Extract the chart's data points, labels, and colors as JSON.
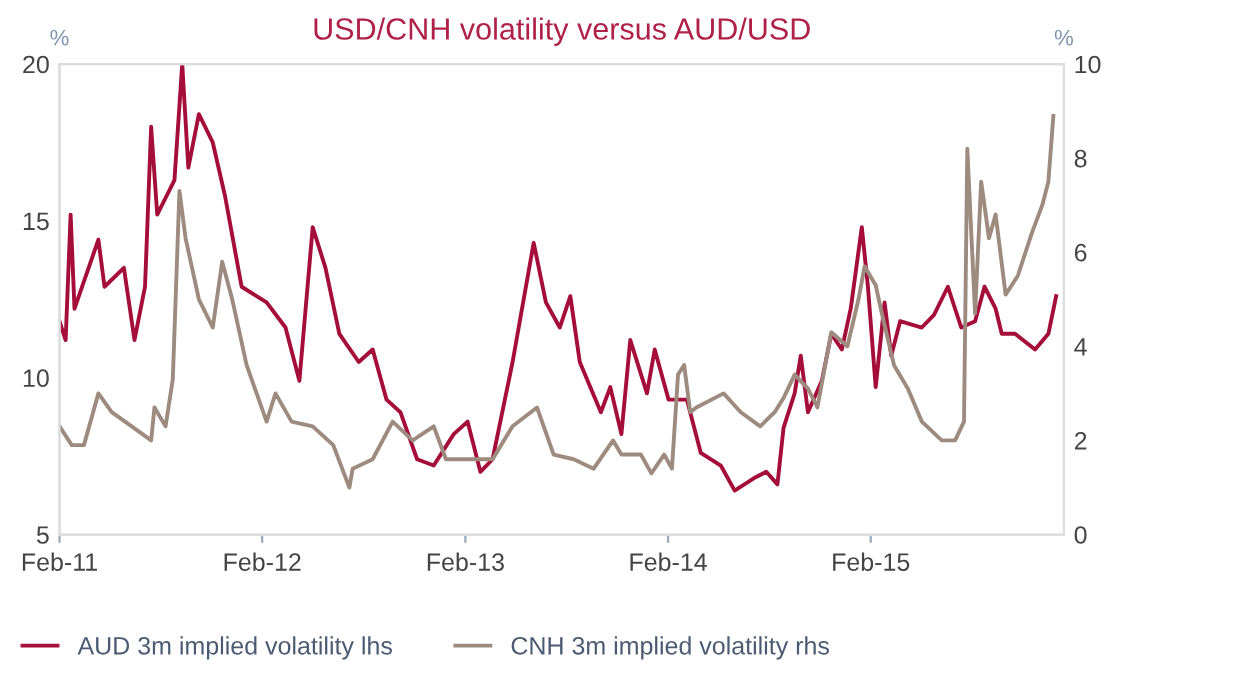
{
  "chart_data": {
    "type": "line",
    "title": "USD/CNH volatility versus AUD/USD",
    "ylabel": "%",
    "y2label": "%",
    "xlim": [
      "2011-02-01",
      "2016-01-15"
    ],
    "xticks": [
      {
        "value": "2011-02-01",
        "label": "Feb-11"
      },
      {
        "value": "2012-02-01",
        "label": "Feb-12"
      },
      {
        "value": "2013-02-01",
        "label": "Feb-13"
      },
      {
        "value": "2014-02-01",
        "label": "Feb-14"
      },
      {
        "value": "2015-02-01",
        "label": "Feb-15"
      }
    ],
    "ylim": [
      5,
      20
    ],
    "yticks": [
      5,
      10,
      15,
      20
    ],
    "y2lim": [
      0,
      10
    ],
    "y2ticks": [
      0,
      2,
      4,
      6,
      8,
      10
    ],
    "grid": false,
    "legend": "bottom",
    "line_style": "solid",
    "marker": "none",
    "series": [
      {
        "name": "AUD 3m implied volatility lhs",
        "color": "#a50d3a",
        "x": [
          "2011-02-01",
          "2011-02-12",
          "2011-02-21",
          "2011-02-28",
          "2011-04-12",
          "2011-04-23",
          "2011-05-28",
          "2011-06-16",
          "2011-07-05",
          "2011-07-16",
          "2011-07-27",
          "2011-08-27",
          "2011-09-10",
          "2011-09-21",
          "2011-10-10",
          "2011-11-04",
          "2011-11-26",
          "2011-12-26",
          "2012-02-09",
          "2012-03-14",
          "2012-04-08",
          "2012-05-02",
          "2012-05-25",
          "2012-06-19",
          "2012-07-24",
          "2012-08-18",
          "2012-09-12",
          "2012-10-07",
          "2012-11-06",
          "2012-12-06",
          "2013-01-11",
          "2013-02-05",
          "2013-02-28",
          "2013-03-22",
          "2013-04-27",
          "2013-06-04",
          "2013-06-26",
          "2013-07-21",
          "2013-08-09",
          "2013-08-26",
          "2013-10-03",
          "2013-10-20",
          "2013-11-09",
          "2013-11-25",
          "2013-12-25",
          "2014-01-08",
          "2014-02-02",
          "2014-03-07",
          "2014-04-01",
          "2014-05-07",
          "2014-06-01",
          "2014-07-06",
          "2014-07-28",
          "2014-08-17",
          "2014-08-28",
          "2014-09-17",
          "2014-09-28",
          "2014-10-11",
          "2014-11-05",
          "2014-11-22",
          "2014-12-11",
          "2014-12-27",
          "2015-01-16",
          "2015-01-27",
          "2015-02-10",
          "2015-02-26",
          "2015-03-10",
          "2015-03-26",
          "2015-05-04",
          "2015-05-26",
          "2015-06-20",
          "2015-07-14",
          "2015-08-08",
          "2015-08-25",
          "2015-09-14",
          "2015-09-25",
          "2015-10-19",
          "2015-11-24",
          "2015-12-18",
          "2016-01-01"
        ],
        "values": [
          11.8,
          11.2,
          15.2,
          12.2,
          14.4,
          12.9,
          13.5,
          11.2,
          12.9,
          18.0,
          15.2,
          16.3,
          20,
          16.7,
          18.4,
          17.5,
          15.8,
          12.9,
          12.4,
          11.6,
          9.9,
          14.8,
          13.5,
          11.4,
          10.5,
          10.9,
          9.3,
          8.9,
          7.4,
          7.2,
          8.2,
          8.6,
          7.0,
          7.4,
          10.5,
          14.3,
          12.4,
          11.6,
          12.6,
          10.5,
          8.9,
          9.7,
          8.2,
          11.2,
          9.5,
          10.9,
          9.3,
          9.3,
          7.6,
          7.2,
          6.4,
          6.8,
          7.0,
          6.6,
          8.4,
          9.5,
          10.7,
          8.9,
          9.9,
          11.4,
          10.9,
          12.2,
          14.8,
          12.9,
          9.7,
          12.4,
          10.7,
          11.8,
          11.6,
          12.0,
          12.9,
          11.6,
          11.8,
          12.9,
          12.2,
          11.4,
          11.4,
          10.9,
          11.4,
          12.6
        ]
      },
      {
        "name": "CNH 3m implied volatility rhs",
        "color": "#9c8b7e",
        "axis": "y2",
        "x": [
          "2011-02-01",
          "2011-02-23",
          "2011-03-17",
          "2011-04-12",
          "2011-05-06",
          "2011-06-11",
          "2011-07-16",
          "2011-07-22",
          "2011-08-11",
          "2011-08-24",
          "2011-09-05",
          "2011-09-16",
          "2011-10-10",
          "2011-11-04",
          "2011-11-21",
          "2011-12-09",
          "2012-01-04",
          "2012-02-09",
          "2012-02-25",
          "2012-03-25",
          "2012-05-02",
          "2012-06-08",
          "2012-07-07",
          "2012-07-13",
          "2012-08-18",
          "2012-09-23",
          "2012-10-29",
          "2012-12-06",
          "2012-12-28",
          "2013-02-05",
          "2013-03-22",
          "2013-04-27",
          "2013-06-10",
          "2013-07-10",
          "2013-08-15",
          "2013-09-20",
          "2013-10-25",
          "2013-11-09",
          "2013-12-14",
          "2014-01-02",
          "2014-01-25",
          "2014-02-08",
          "2014-02-19",
          "2014-03-02",
          "2014-03-13",
          "2014-03-24",
          "2014-05-12",
          "2014-06-12",
          "2014-07-17",
          "2014-08-12",
          "2014-08-28",
          "2014-09-17",
          "2014-10-11",
          "2014-10-28",
          "2014-11-22",
          "2014-12-21",
          "2015-01-10",
          "2015-01-21",
          "2015-02-10",
          "2015-02-21",
          "2015-03-15",
          "2015-04-09",
          "2015-05-04",
          "2015-06-09",
          "2015-07-03",
          "2015-07-19",
          "2015-07-25",
          "2015-08-08",
          "2015-08-19",
          "2015-09-02",
          "2015-09-14",
          "2015-10-02",
          "2015-10-24",
          "2015-11-18",
          "2015-12-07",
          "2015-12-18",
          "2015-12-27"
        ],
        "values": [
          2.3,
          1.9,
          1.9,
          3.0,
          2.6,
          2.3,
          2.0,
          2.7,
          2.3,
          3.3,
          7.3,
          6.3,
          5.0,
          4.4,
          5.8,
          5.0,
          3.6,
          2.4,
          3.0,
          2.4,
          2.3,
          1.9,
          1.0,
          1.4,
          1.6,
          2.4,
          2.0,
          2.3,
          1.6,
          1.6,
          1.6,
          2.3,
          2.7,
          1.7,
          1.6,
          1.4,
          2.0,
          1.7,
          1.7,
          1.3,
          1.7,
          1.4,
          3.4,
          3.6,
          2.6,
          2.7,
          3.0,
          2.6,
          2.3,
          2.6,
          2.9,
          3.4,
          3.1,
          2.7,
          4.3,
          4.0,
          5.0,
          5.7,
          5.3,
          4.7,
          3.6,
          3.1,
          2.4,
          2.0,
          2.0,
          2.4,
          8.2,
          4.7,
          7.5,
          6.3,
          6.8,
          5.1,
          5.5,
          6.4,
          7.0,
          7.5,
          8.9
        ]
      }
    ]
  }
}
